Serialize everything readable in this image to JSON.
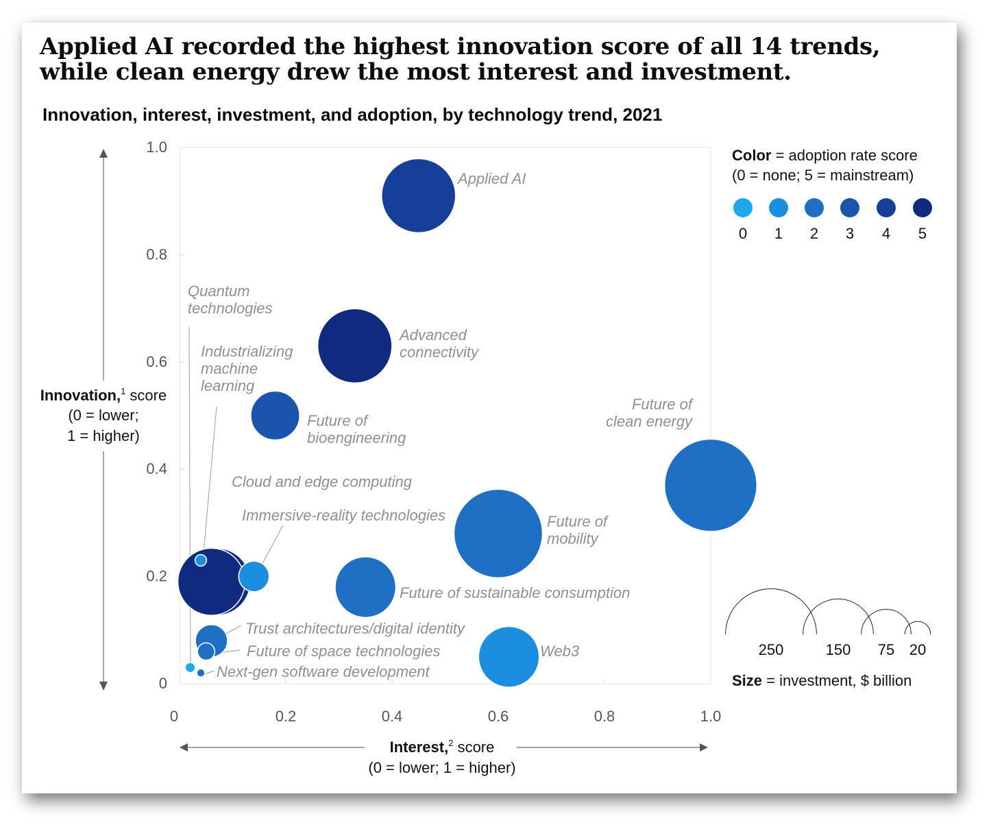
{
  "title": "Applied AI recorded the highest innovation score of all 14 trends, while clean energy drew the most interest and investment.",
  "subtitle": "Innovation, interest, investment, and adoption, by technology trend, 2021",
  "chart_data": {
    "type": "scatter",
    "title": "Applied AI recorded the highest innovation score of all 14 trends, while clean energy drew the most interest and investment.",
    "subtitle": "Innovation, interest, investment, and adoption, by technology trend, 2021",
    "xlabel": {
      "bold": "Interest,",
      "sup": "2",
      "rest": " score",
      "line2": "(0 = lower; 1 = higher)"
    },
    "ylabel": {
      "bold": "Innovation,",
      "sup": "1",
      "rest": " score",
      "line2": "(0 = lower;",
      "line3": "1 = higher)"
    },
    "xlim": [
      0,
      1
    ],
    "ylim": [
      0,
      1
    ],
    "x_ticks": [
      "0",
      "0.2",
      "0.4",
      "0.6",
      "0.8",
      "1.0"
    ],
    "y_ticks": [
      "0",
      "0.2",
      "0.4",
      "0.6",
      "0.8",
      "1.0"
    ],
    "grid": true,
    "adoption_colors": [
      "#1ea7ea",
      "#1b8ee0",
      "#1f6fc4",
      "#1a54ad",
      "#163f9a",
      "#0f2a7e"
    ],
    "points": [
      {
        "label": "Applied AI",
        "x": 0.45,
        "y": 0.91,
        "adoption": 4,
        "investment": 165
      },
      {
        "label": "Advanced connectivity",
        "x": 0.33,
        "y": 0.63,
        "adoption": 5,
        "investment": 166
      },
      {
        "label": "Future of bioengineering",
        "x": 0.18,
        "y": 0.5,
        "adoption": 3,
        "investment": 72
      },
      {
        "label": "Future of clean energy",
        "x": 1.0,
        "y": 0.37,
        "adoption": 2,
        "investment": 257
      },
      {
        "label": "Future of mobility",
        "x": 0.6,
        "y": 0.28,
        "adoption": 2,
        "investment": 236
      },
      {
        "label": "Future of sustainable consumption",
        "x": 0.35,
        "y": 0.18,
        "adoption": 2,
        "investment": 111
      },
      {
        "label": "Web3",
        "x": 0.62,
        "y": 0.05,
        "adoption": 1,
        "investment": 111
      },
      {
        "label": "Industrializing machine learning",
        "x": 0.07,
        "y": 0.19,
        "adoption": 5,
        "investment": 136
      },
      {
        "label": "Immersive-reality technologies",
        "x": 0.14,
        "y": 0.2,
        "adoption": 1,
        "investment": 28
      },
      {
        "label": "Quantum technologies",
        "x": 0.04,
        "y": 0.23,
        "adoption": 1,
        "investment": 4
      },
      {
        "label": "Cloud and edge computing",
        "x": 0.06,
        "y": 0.19,
        "adoption": 5,
        "investment": 136
      },
      {
        "label": "Trust architectures/digital identity",
        "x": 0.06,
        "y": 0.08,
        "adoption": 2,
        "investment": 31
      },
      {
        "label": "Future of space technologies",
        "x": 0.05,
        "y": 0.06,
        "adoption": 2,
        "investment": 9
      },
      {
        "label": "Next-gen software development",
        "x": 0.04,
        "y": 0.02,
        "adoption": 2,
        "investment": 2
      },
      {
        "label": "",
        "x": 0.02,
        "y": 0.03,
        "adoption": 0,
        "investment": 3
      }
    ],
    "annotations": [
      "Applied AI",
      "Advanced\nconnectivity",
      "Future of\nbioengineering",
      "Future of\nclean energy",
      "Future of\nmobility",
      "Future of sustainable consumption",
      "Web3",
      "Quantum\ntechnologies",
      "Industrializing\nmachine\nlearning",
      "Cloud and edge computing",
      "Immersive-reality technologies",
      "Trust architectures/digital identity",
      "Future of space technologies",
      "Next-gen software development"
    ],
    "legend": {
      "placement": "right",
      "color_title_bold": "Color",
      "color_title_rest": " = adoption rate score",
      "color_subtitle": "(0 = none; 5 = mainstream)",
      "color_labels": [
        "0",
        "1",
        "2",
        "3",
        "4",
        "5"
      ],
      "size_title_bold": "Size",
      "size_title_rest": " = investment, $ billion",
      "size_labels": [
        "250",
        "150",
        "75",
        "20"
      ],
      "size_values": [
        250,
        150,
        75,
        20
      ]
    }
  }
}
